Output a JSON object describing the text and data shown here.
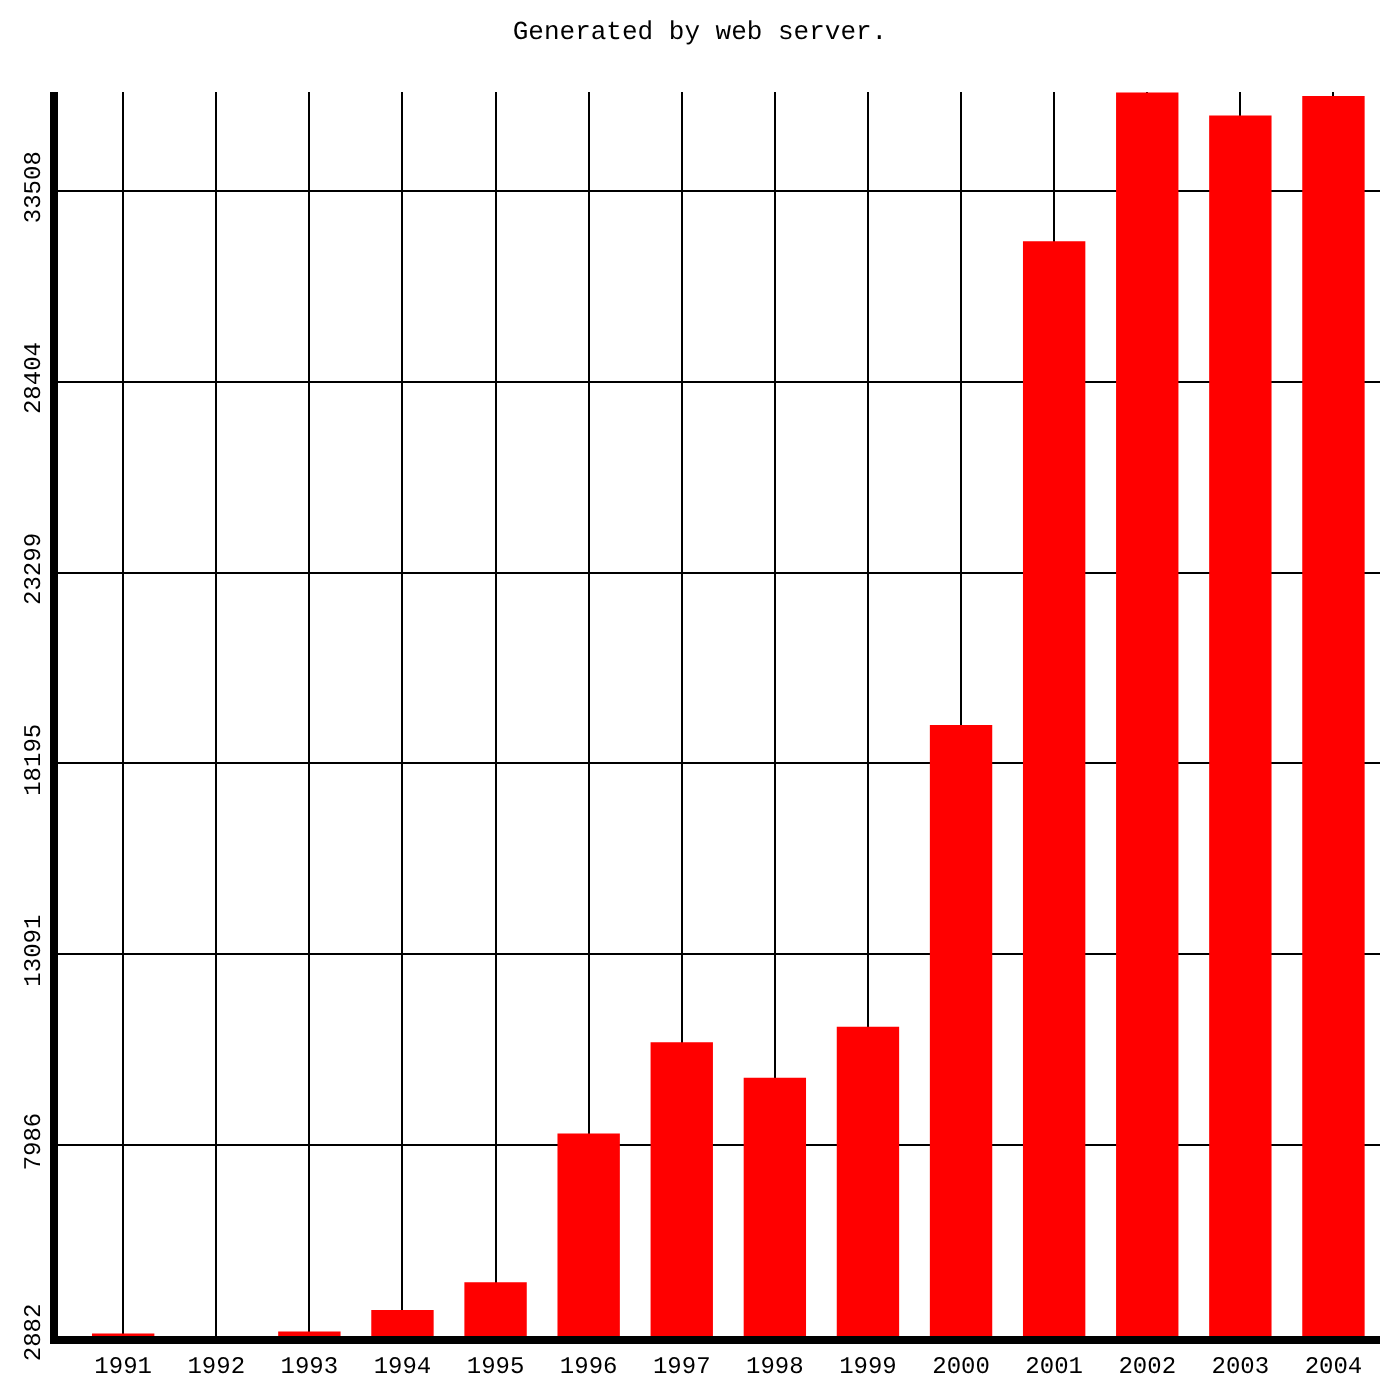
{
  "chart_data": {
    "type": "bar",
    "title": "Generated by web server.",
    "categories": [
      "1991",
      "1992",
      "1993",
      "1994",
      "1995",
      "1996",
      "1997",
      "1998",
      "1999",
      "2000",
      "2001",
      "2002",
      "2003",
      "2004"
    ],
    "values": [
      2950,
      null,
      3000,
      3580,
      4320,
      8300,
      10740,
      9790,
      11150,
      19220,
      32160,
      36140,
      35520,
      36040
    ],
    "color": "#ff0000",
    "ylim": [
      2882,
      36150
    ],
    "yticks": [
      2882,
      7986,
      13091,
      18195,
      23299,
      28404,
      33508
    ],
    "grid": true
  }
}
